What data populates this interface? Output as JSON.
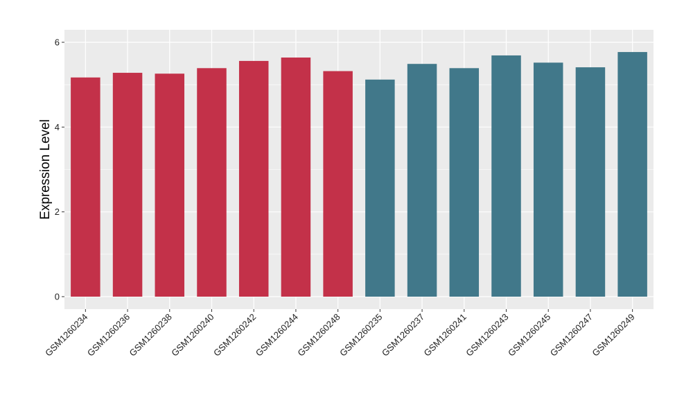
{
  "chart_data": {
    "type": "bar",
    "title": "",
    "xlabel": "",
    "ylabel": "Expression Level",
    "ylim": [
      0,
      6
    ],
    "yticks": [
      0,
      2,
      4,
      6
    ],
    "grid": true,
    "legend": "none",
    "categories": [
      "GSM1260234",
      "GSM1260236",
      "GSM1260238",
      "GSM1260240",
      "GSM1260242",
      "GSM1260244",
      "GSM1260248",
      "GSM1260235",
      "GSM1260237",
      "GSM1260241",
      "GSM1260243",
      "GSM1260245",
      "GSM1260247",
      "GSM1260249"
    ],
    "values": [
      5.17,
      5.28,
      5.26,
      5.39,
      5.56,
      5.64,
      5.32,
      5.12,
      5.49,
      5.39,
      5.69,
      5.52,
      5.41,
      5.77
    ],
    "groups": [
      0,
      0,
      0,
      0,
      0,
      0,
      0,
      1,
      1,
      1,
      1,
      1,
      1,
      1
    ],
    "colors": [
      "#C33149",
      "#41788A"
    ],
    "panel_background": "#EBEBEB",
    "grid_color": "#FFFFFF"
  }
}
